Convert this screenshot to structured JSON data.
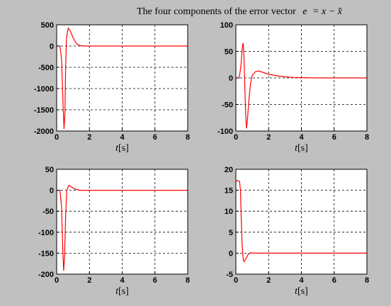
{
  "figure": {
    "title_text": "The four components of the error vector",
    "title_math_lhs": "e",
    "title_math_rhs": "= x − x̂",
    "background": "#c0c0c0",
    "line_color": "#ff0000"
  },
  "chart_data": [
    {
      "type": "line",
      "title": "",
      "xlabel_var": "t",
      "xlabel_unit": "[s]",
      "xlim": [
        0,
        8
      ],
      "ylim": [
        -2000,
        500
      ],
      "xticks": [
        0,
        2,
        4,
        6,
        8
      ],
      "yticks": [
        500,
        0,
        -500,
        -1000,
        -1500,
        -2000
      ],
      "grid": true,
      "series": [
        {
          "values": [
            [
              0,
              0
            ],
            [
              0.2,
              0
            ],
            [
              0.3,
              -300
            ],
            [
              0.4,
              -1500
            ],
            [
              0.45,
              -1950
            ],
            [
              0.5,
              -1600
            ],
            [
              0.55,
              -500
            ],
            [
              0.6,
              200
            ],
            [
              0.7,
              420
            ],
            [
              0.8,
              380
            ],
            [
              1.0,
              200
            ],
            [
              1.2,
              60
            ],
            [
              1.4,
              10
            ],
            [
              1.7,
              0
            ],
            [
              8,
              0
            ]
          ]
        }
      ]
    },
    {
      "type": "line",
      "title": "",
      "xlabel_var": "t",
      "xlabel_unit": "[s]",
      "xlim": [
        0,
        8
      ],
      "ylim": [
        -100,
        100
      ],
      "xticks": [
        0,
        2,
        4,
        6,
        8
      ],
      "yticks": [
        100,
        50,
        0,
        -50,
        -100
      ],
      "grid": true,
      "series": [
        {
          "values": [
            [
              0,
              0
            ],
            [
              0.2,
              0
            ],
            [
              0.3,
              20
            ],
            [
              0.4,
              60
            ],
            [
              0.45,
              66
            ],
            [
              0.5,
              35
            ],
            [
              0.55,
              -20
            ],
            [
              0.6,
              -70
            ],
            [
              0.65,
              -95
            ],
            [
              0.7,
              -80
            ],
            [
              0.8,
              -40
            ],
            [
              0.9,
              -10
            ],
            [
              1.0,
              5
            ],
            [
              1.2,
              12
            ],
            [
              1.4,
              13
            ],
            [
              1.7,
              10
            ],
            [
              2.0,
              7
            ],
            [
              2.5,
              4
            ],
            [
              3.0,
              2
            ],
            [
              3.5,
              1
            ],
            [
              4.0,
              0.5
            ],
            [
              5.0,
              0
            ],
            [
              8,
              0
            ]
          ]
        }
      ]
    },
    {
      "type": "line",
      "title": "",
      "xlabel_var": "t",
      "xlabel_unit": "[s]",
      "xlim": [
        0,
        8
      ],
      "ylim": [
        -200,
        50
      ],
      "xticks": [
        0,
        2,
        4,
        6,
        8
      ],
      "yticks": [
        50,
        0,
        -50,
        -100,
        -150,
        -200
      ],
      "grid": true,
      "series": [
        {
          "values": [
            [
              0,
              0
            ],
            [
              0.2,
              0
            ],
            [
              0.3,
              -40
            ],
            [
              0.38,
              -150
            ],
            [
              0.43,
              -192
            ],
            [
              0.48,
              -160
            ],
            [
              0.55,
              -60
            ],
            [
              0.62,
              0
            ],
            [
              0.75,
              12
            ],
            [
              0.9,
              8
            ],
            [
              1.1,
              3
            ],
            [
              1.4,
              0
            ],
            [
              8,
              0
            ]
          ]
        }
      ]
    },
    {
      "type": "line",
      "title": "",
      "xlabel_var": "t",
      "xlabel_unit": "[s]",
      "xlim": [
        0,
        8
      ],
      "ylim": [
        -5,
        20
      ],
      "xticks": [
        0,
        2,
        4,
        6,
        8
      ],
      "yticks": [
        20,
        15,
        10,
        5,
        0,
        -5
      ],
      "grid": true,
      "series": [
        {
          "values": [
            [
              0,
              17.2
            ],
            [
              0.1,
              17.3
            ],
            [
              0.22,
              17.2
            ],
            [
              0.28,
              15
            ],
            [
              0.33,
              8
            ],
            [
              0.38,
              2
            ],
            [
              0.45,
              -1.5
            ],
            [
              0.5,
              -2
            ],
            [
              0.6,
              -1.4
            ],
            [
              0.75,
              -0.3
            ],
            [
              0.9,
              0.1
            ],
            [
              1.1,
              0
            ],
            [
              8,
              0
            ]
          ]
        }
      ]
    }
  ]
}
